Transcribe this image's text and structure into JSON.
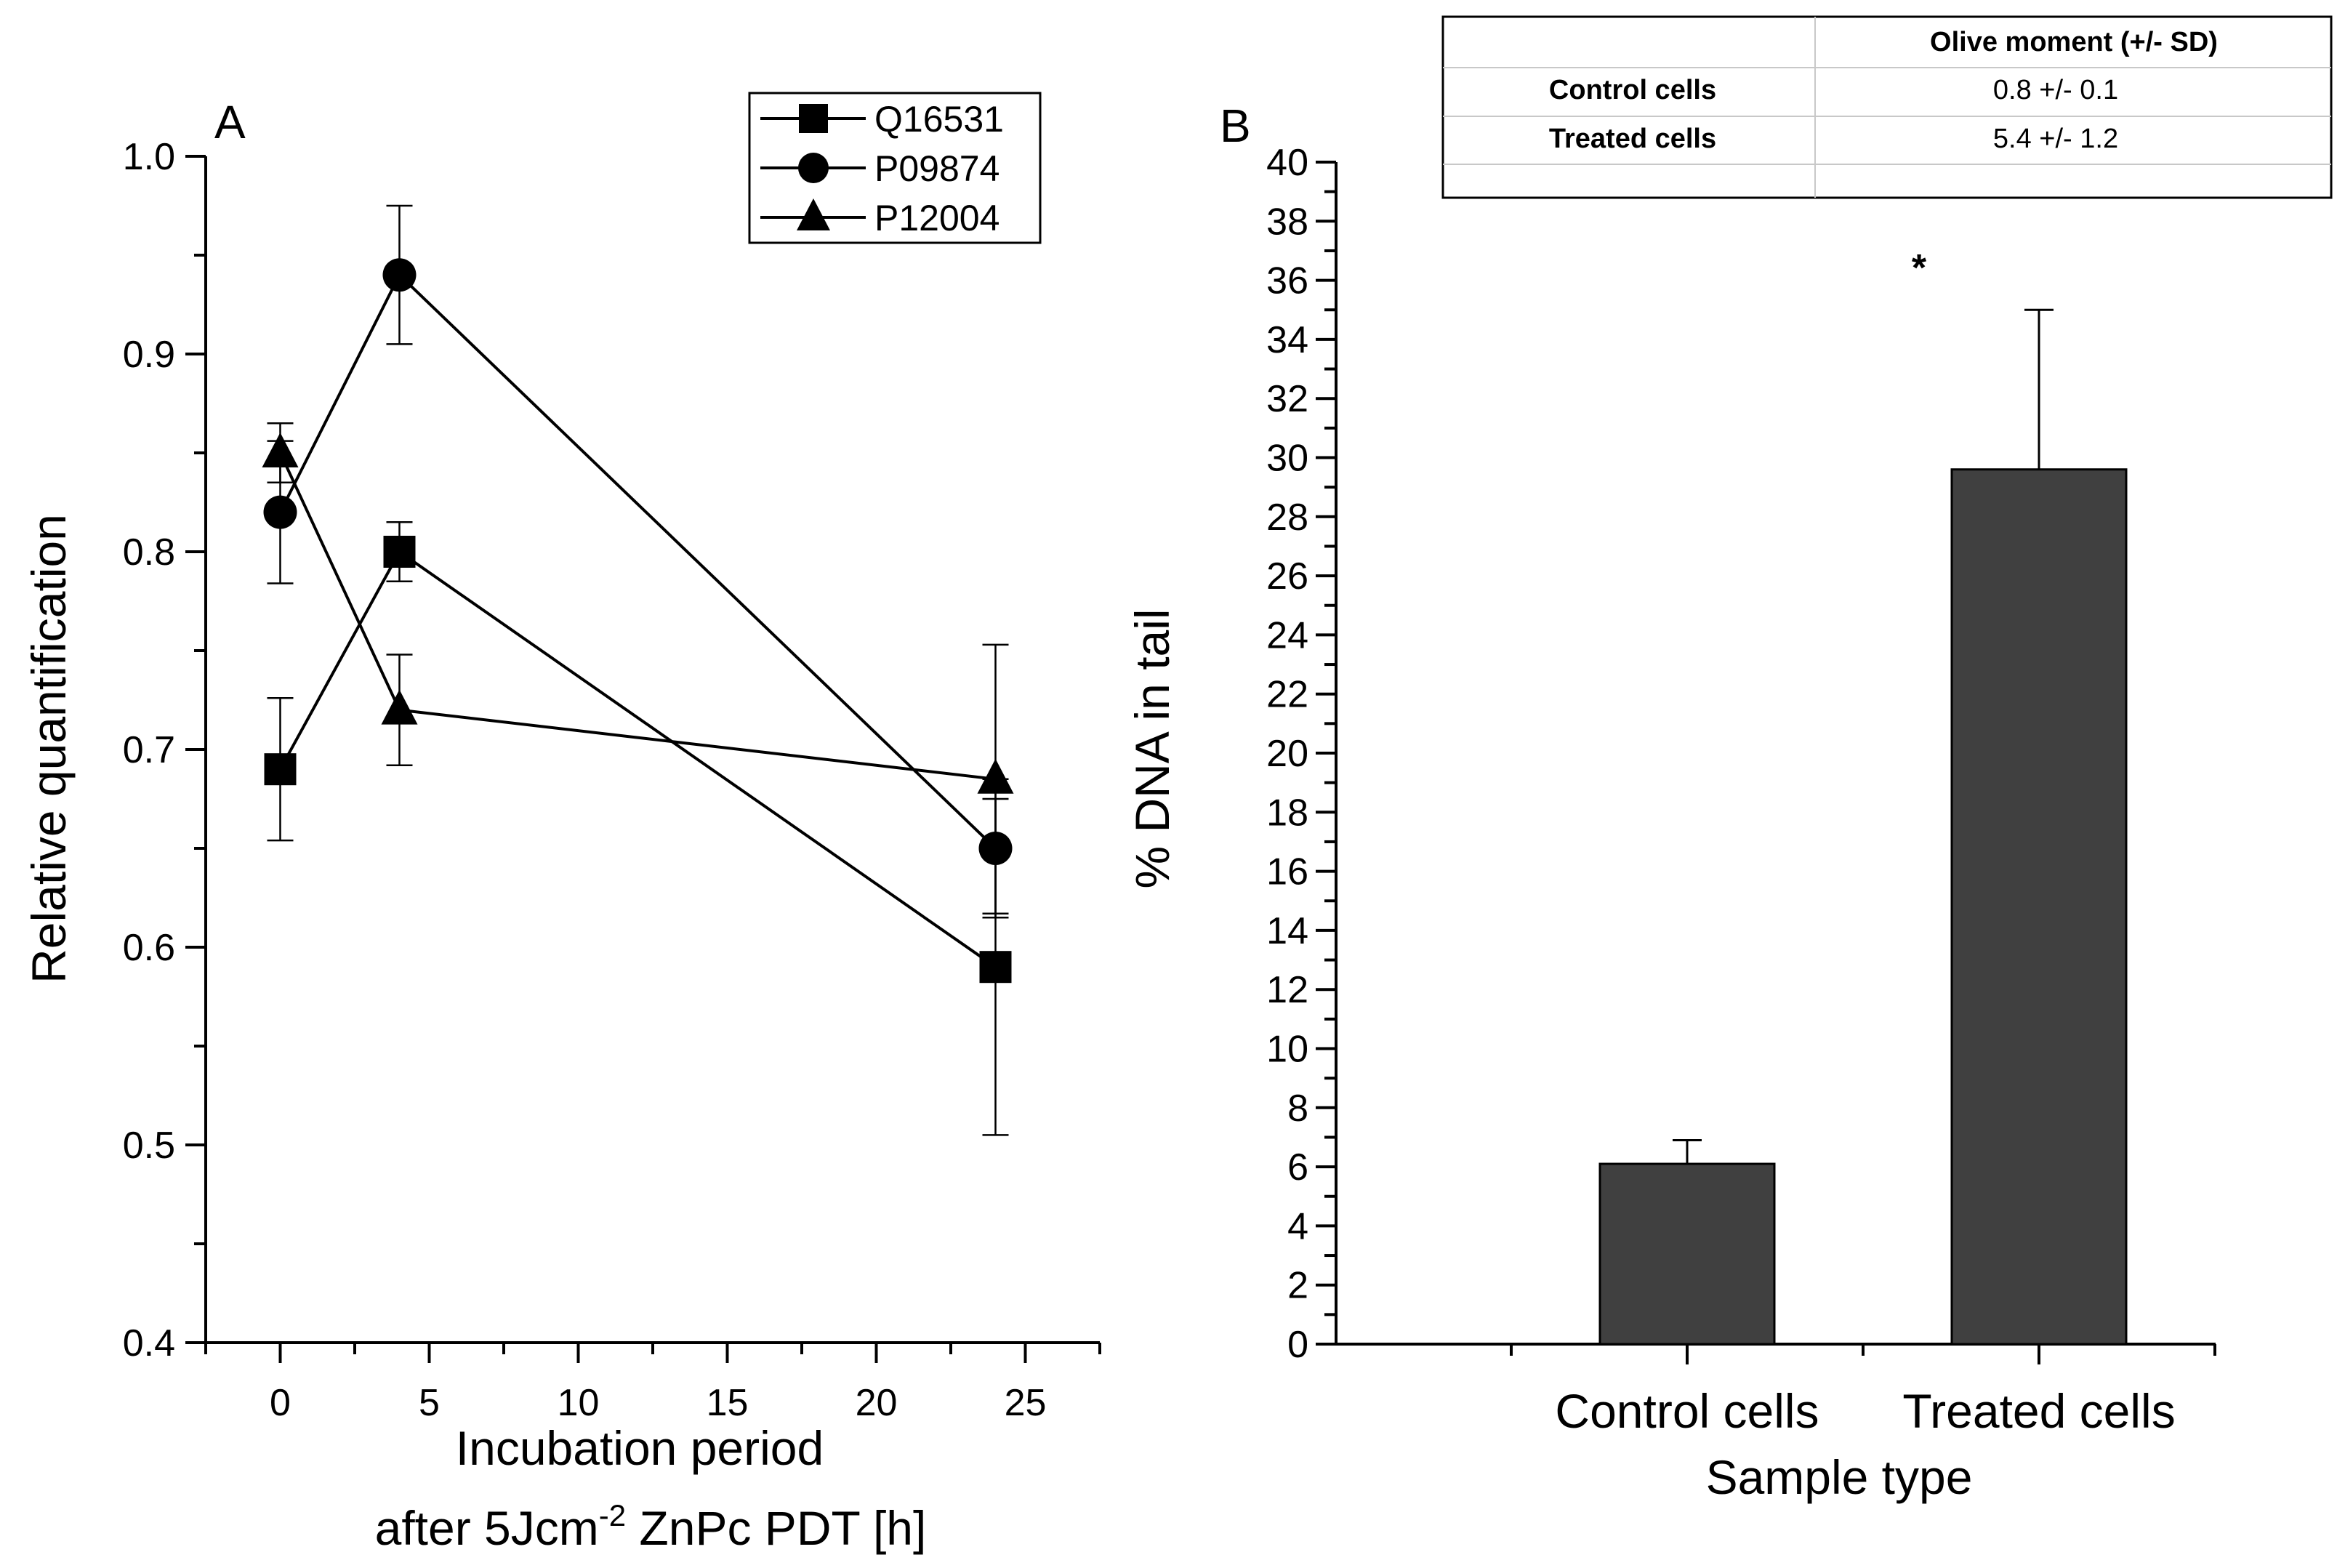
{
  "chart_data": [
    {
      "panel": "A",
      "type": "line",
      "xlabel_line1": "Incubation period",
      "xlabel_line2_prefix": "after 5Jcm",
      "xlabel_line2_sup": "-2",
      "xlabel_line2_suffix": " ZnPc PDT [h]",
      "ylabel": "Relative quantification",
      "xlim": [
        -2.5,
        27.5
      ],
      "ylim": [
        0.4,
        1.0
      ],
      "x_ticks": [
        0,
        5,
        10,
        15,
        20,
        25
      ],
      "x_tick_labels": [
        "0",
        "5",
        "10",
        "15",
        "20",
        "25"
      ],
      "y_ticks": [
        0.4,
        0.5,
        0.6,
        0.7,
        0.8,
        0.9,
        1.0
      ],
      "y_tick_labels": [
        "0.4",
        "0.5",
        "0.6",
        "0.7",
        "0.8",
        "0.9",
        "1.0"
      ],
      "legend_position": "top-right",
      "series": [
        {
          "name": "Q16531",
          "marker": "square",
          "x": [
            0,
            4,
            24
          ],
          "y": [
            0.69,
            0.8,
            0.59
          ],
          "err": [
            0.036,
            0.015,
            0.085
          ]
        },
        {
          "name": "P09874",
          "marker": "circle",
          "x": [
            0,
            4,
            24
          ],
          "y": [
            0.82,
            0.94,
            0.65
          ],
          "err": [
            0.036,
            0.035,
            0.035
          ]
        },
        {
          "name": "P12004",
          "marker": "triangle",
          "x": [
            0,
            4,
            24
          ],
          "y": [
            0.85,
            0.72,
            0.685
          ],
          "err": [
            0.015,
            0.028,
            0.068
          ]
        }
      ]
    },
    {
      "panel": "B",
      "type": "bar",
      "xlabel": "Sample type",
      "ylabel": "% DNA in tail",
      "categories": [
        "Control cells",
        "Treated cells"
      ],
      "values": [
        6.1,
        29.6
      ],
      "err": [
        0.8,
        5.4
      ],
      "ylim": [
        0,
        40
      ],
      "y_ticks": [
        0,
        2,
        4,
        6,
        8,
        10,
        12,
        14,
        16,
        18,
        20,
        22,
        24,
        26,
        28,
        30,
        32,
        34,
        36,
        38,
        40
      ],
      "y_tick_labels": [
        "0",
        "2",
        "4",
        "6",
        "8",
        "10",
        "12",
        "14",
        "16",
        "18",
        "20",
        "22",
        "24",
        "26",
        "28",
        "30",
        "32",
        "34",
        "36",
        "38",
        "40"
      ],
      "significance_marker": "*",
      "bar_color": "#404040"
    }
  ],
  "olive_table": {
    "header": "Olive moment (+/- SD)",
    "rows": [
      {
        "label": "Control cells",
        "value": "0.8 +/- 0.1"
      },
      {
        "label": "Treated cells",
        "value": "5.4 +/- 1.2"
      }
    ]
  }
}
